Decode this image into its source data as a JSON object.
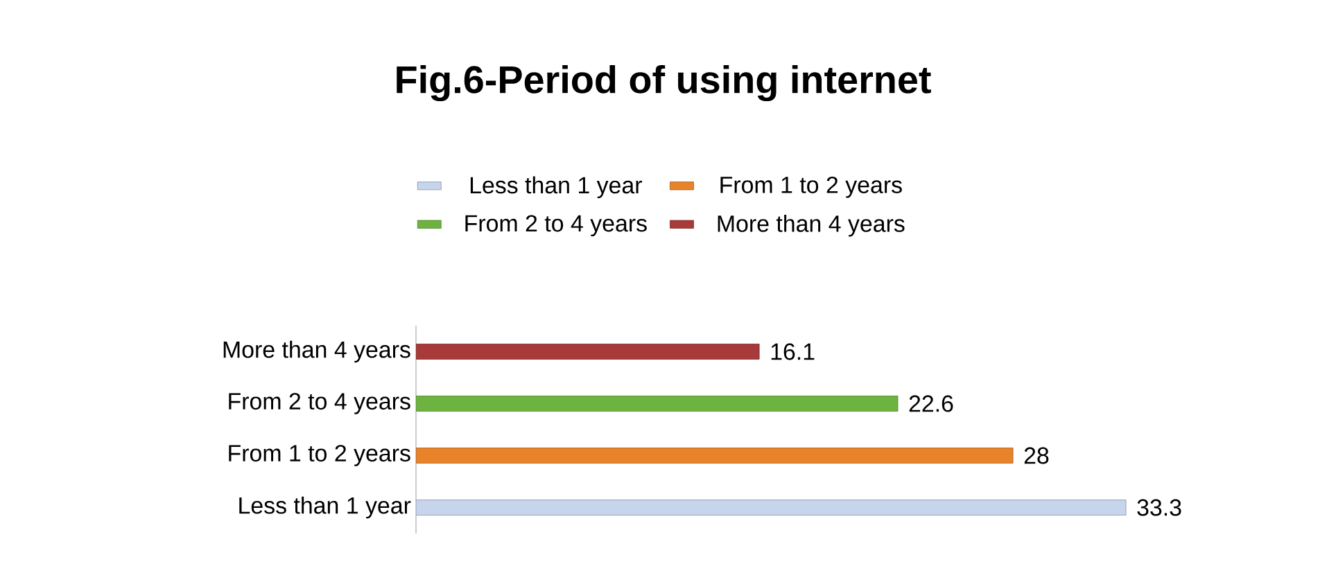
{
  "chart_data": {
    "type": "bar",
    "orientation": "horizontal",
    "title": "Fig.6-Period of using internet",
    "categories": [
      "More than 4 years",
      "From 2 to 4 years",
      "From 1 to 2 years",
      "Less than 1 year"
    ],
    "series": [
      {
        "name": "Less than 1 year",
        "color": "#c6d4ec",
        "values": [
          null,
          null,
          null,
          33.3
        ]
      },
      {
        "name": "From 1 to 2 years",
        "color": "#e8832a",
        "values": [
          null,
          null,
          28,
          null
        ]
      },
      {
        "name": "From 2 to 4 years",
        "color": "#6db33f",
        "values": [
          null,
          22.6,
          null,
          null
        ]
      },
      {
        "name": "More than 4 years",
        "color": "#a83a3a",
        "values": [
          16.1,
          null,
          null,
          null
        ]
      }
    ],
    "data_labels": true,
    "legend": "top"
  }
}
